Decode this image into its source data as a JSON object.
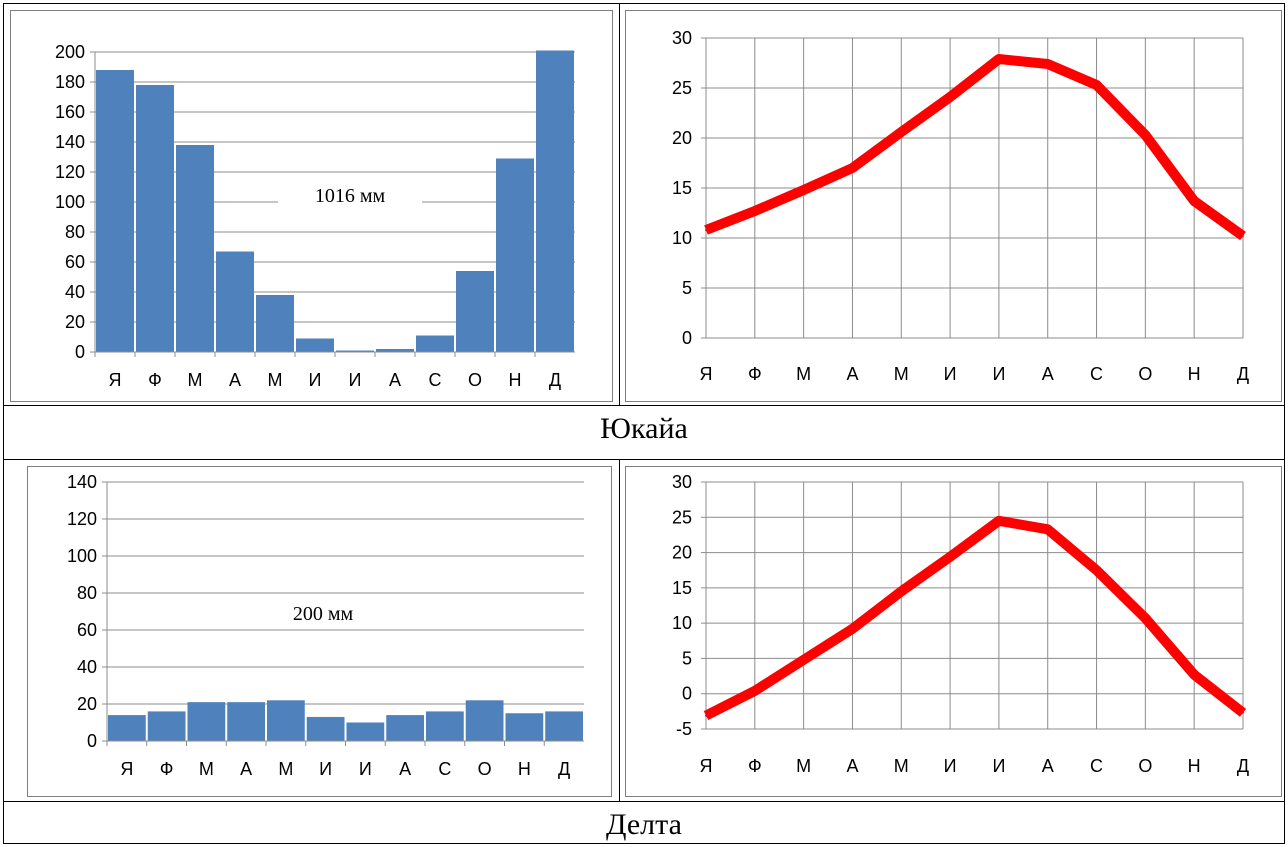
{
  "sections": [
    {
      "name": "Юкайа",
      "precipitation": {
        "type": "bar",
        "categories": [
          "Я",
          "Ф",
          "М",
          "А",
          "М",
          "И",
          "И",
          "А",
          "С",
          "О",
          "Н",
          "Д"
        ],
        "values": [
          188,
          178,
          138,
          67,
          38,
          9,
          1,
          2,
          11,
          54,
          129,
          201
        ],
        "total_label": "1016 мм",
        "ylim": [
          0,
          200
        ],
        "yticks": [
          0,
          20,
          40,
          60,
          80,
          100,
          120,
          140,
          160,
          180,
          200
        ],
        "color": "#4f81bd"
      },
      "temperature": {
        "type": "line",
        "categories": [
          "Я",
          "Ф",
          "М",
          "А",
          "М",
          "И",
          "И",
          "А",
          "С",
          "О",
          "Н",
          "Д"
        ],
        "values": [
          10.8,
          12.7,
          14.8,
          17.0,
          20.6,
          24.1,
          27.9,
          27.4,
          25.3,
          20.3,
          13.7,
          10.2
        ],
        "ylim": [
          0,
          30
        ],
        "yticks": [
          0,
          5,
          10,
          15,
          20,
          25,
          30
        ],
        "color": "#ff0000"
      }
    },
    {
      "name": "Делта",
      "precipitation": {
        "type": "bar",
        "categories": [
          "Я",
          "Ф",
          "М",
          "А",
          "М",
          "И",
          "И",
          "А",
          "С",
          "О",
          "Н",
          "Д"
        ],
        "values": [
          14,
          16,
          21,
          21,
          22,
          13,
          10,
          14,
          16,
          22,
          15,
          16
        ],
        "total_label": "200 мм",
        "ylim": [
          0,
          140
        ],
        "yticks": [
          0,
          20,
          40,
          60,
          80,
          100,
          120,
          140
        ],
        "color": "#4f81bd"
      },
      "temperature": {
        "type": "line",
        "categories": [
          "Я",
          "Ф",
          "М",
          "А",
          "М",
          "И",
          "И",
          "А",
          "С",
          "О",
          "Н",
          "Д"
        ],
        "values": [
          -3.1,
          0.4,
          4.8,
          9.2,
          14.5,
          19.4,
          24.5,
          23.3,
          17.5,
          10.7,
          2.7,
          -2.7
        ],
        "ylim": [
          -5,
          30
        ],
        "yticks": [
          -5,
          0,
          5,
          10,
          15,
          20,
          25,
          30
        ],
        "color": "#ff0000"
      }
    }
  ]
}
